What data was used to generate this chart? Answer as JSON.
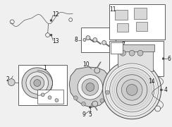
{
  "bg_color": "#f0f0f0",
  "line_color": "#444444",
  "label_color": "#111111",
  "label_fontsize": 5.5,
  "wire_color": "#555555",
  "part_fill": "#d8d8d8",
  "part_edge": "#444444",
  "white": "#ffffff",
  "box_fill": "#f8f8f8"
}
